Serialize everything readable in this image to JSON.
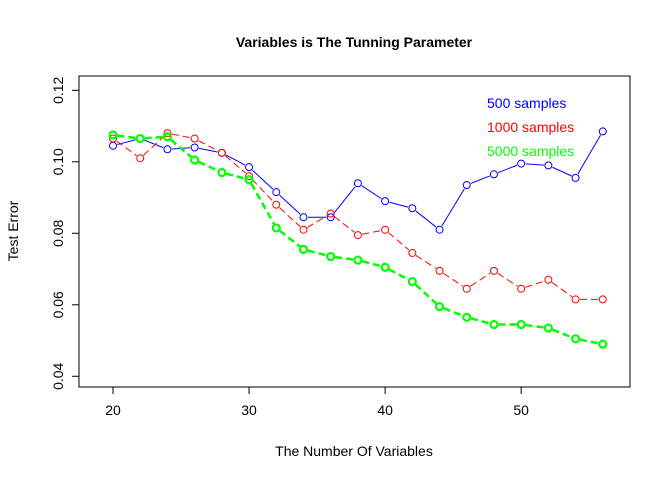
{
  "chart_data": {
    "type": "line",
    "title": "Variables is The Tunning Parameter",
    "xlabel": "The Number Of Variables",
    "ylabel": "Test Error",
    "xlim": [
      17.5,
      58
    ],
    "ylim": [
      0.037,
      0.124
    ],
    "xticks": [
      20,
      30,
      40,
      50
    ],
    "yticks": [
      0.04,
      0.06,
      0.08,
      0.1,
      0.12
    ],
    "ytick_labels": [
      "0.04",
      "0.06",
      "0.08",
      "0.10",
      "0.12"
    ],
    "grid": false,
    "legend_position": "top-right",
    "x": [
      20,
      22,
      24,
      26,
      28,
      30,
      32,
      34,
      36,
      38,
      40,
      42,
      44,
      46,
      48,
      50,
      52,
      54,
      56
    ],
    "series": [
      {
        "name": "500 samples",
        "color": "#0000ff",
        "line_style": "solid",
        "values": [
          0.1045,
          0.1065,
          0.1035,
          0.104,
          0.1025,
          0.0985,
          0.0915,
          0.0845,
          0.0845,
          0.094,
          0.089,
          0.087,
          0.081,
          0.0935,
          0.0965,
          0.0995,
          0.099,
          0.0955,
          0.1085
        ]
      },
      {
        "name": "1000 samples",
        "color": "#ff0000",
        "line_style": "dashed",
        "values": [
          0.1065,
          0.101,
          0.108,
          0.1065,
          0.1025,
          0.096,
          0.088,
          0.081,
          0.0855,
          0.0795,
          0.081,
          0.0745,
          0.0695,
          0.0645,
          0.0695,
          0.0645,
          0.067,
          0.0615,
          0.0615
        ]
      },
      {
        "name": "5000 samples",
        "color": "#00ff00",
        "line_style": "dashed-thick",
        "values": [
          0.1075,
          0.1065,
          0.107,
          0.1005,
          0.097,
          0.095,
          0.0815,
          0.0755,
          0.0735,
          0.0725,
          0.0705,
          0.0665,
          0.0595,
          0.0565,
          0.0545,
          0.0545,
          0.0535,
          0.0505,
          0.049
        ]
      }
    ]
  }
}
